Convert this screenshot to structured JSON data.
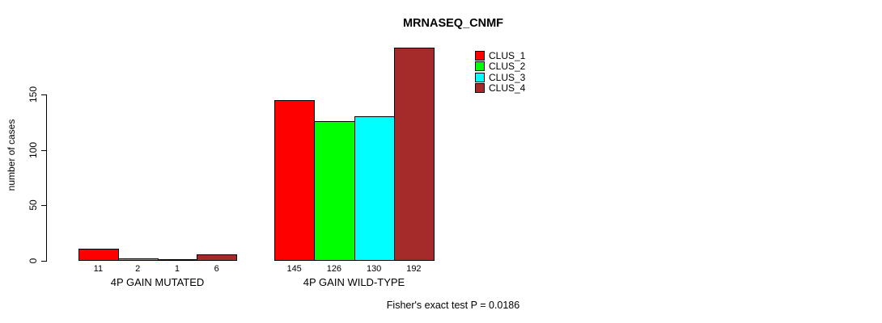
{
  "chart_data": {
    "type": "bar",
    "title": "MRNASEQ_CNMF",
    "ylabel": "number of cases",
    "xlabel": "",
    "yticks": [
      0,
      50,
      100,
      150
    ],
    "ylim": [
      0,
      200
    ],
    "grid": false,
    "legend_position": "top-right-inside",
    "categories": [
      "4P GAIN MUTATED",
      "4P GAIN WILD-TYPE"
    ],
    "series": [
      {
        "name": "CLUS_1",
        "color": "#ff0000",
        "values": [
          11,
          145
        ]
      },
      {
        "name": "CLUS_2",
        "color": "#00ff00",
        "values": [
          2,
          126
        ]
      },
      {
        "name": "CLUS_3",
        "color": "#00ffff",
        "values": [
          1,
          130
        ]
      },
      {
        "name": "CLUS_4",
        "color": "#a52a2a",
        "values": [
          6,
          192
        ]
      }
    ],
    "annotation": "Fisher's exact test P = 0.0186"
  },
  "colors": {
    "axis": "#000000",
    "background": "#ffffff",
    "bar_border": "#000000"
  }
}
